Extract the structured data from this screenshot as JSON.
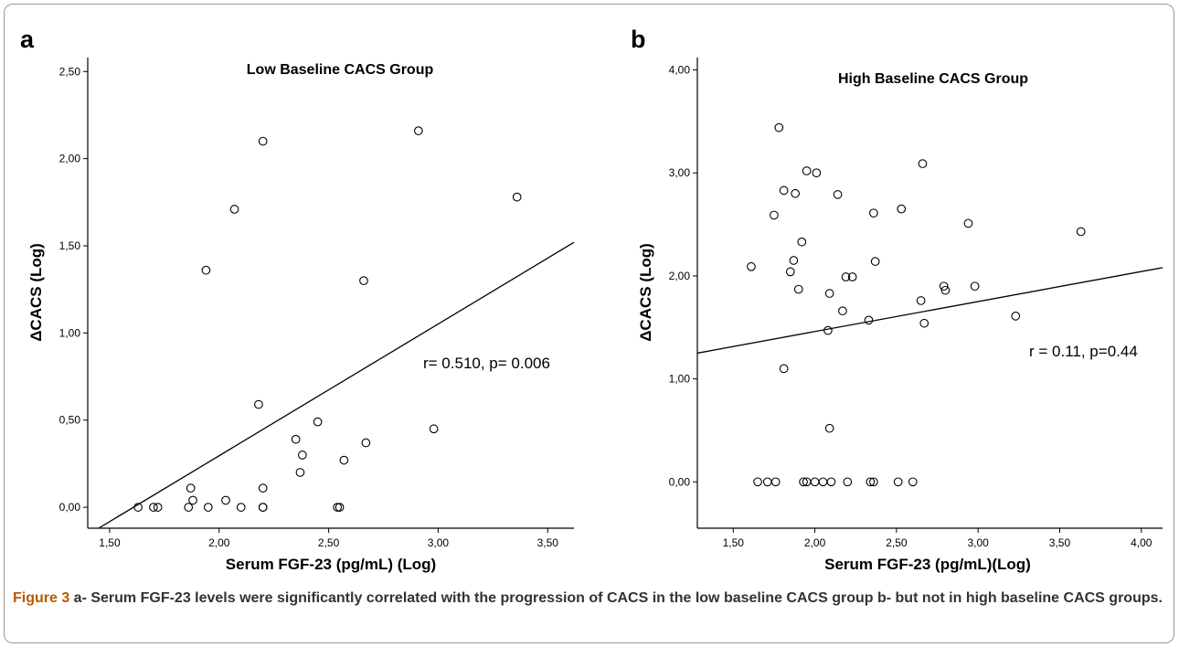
{
  "caption": {
    "label": "Figure 3",
    "text": " a- Serum FGF-23 levels were significantly correlated with the progression of CACS in the low baseline CACS group b- but not in high baseline CACS groups."
  },
  "colors": {
    "axis": "#000000",
    "marker": "#000000",
    "caption": "#333333",
    "figure_label": "#b85a00",
    "border": "#9a9a9a"
  },
  "chart_data": [
    {
      "type": "scatter",
      "panel": "a",
      "title": "Low Baseline CACS Group",
      "xlabel": "Serum FGF-23 (pg/mL) (Log)",
      "ylabel": "ΔCACS (Log)",
      "xlim": [
        1.4,
        3.62
      ],
      "ylim": [
        -0.12,
        2.58
      ],
      "xticks": [
        "1,50",
        "2,00",
        "2,50",
        "3,00",
        "3,50"
      ],
      "yticks": [
        "0,00",
        "0,50",
        "1,00",
        "1,50",
        "2,00",
        "2,50"
      ],
      "annotation": "r= 0.510, p= 0.006",
      "fit_line": {
        "x1": 1.45,
        "y1": -0.12,
        "x2": 3.62,
        "y2": 1.52
      },
      "points": {
        "x": [
          1.63,
          1.7,
          1.72,
          1.86,
          1.87,
          1.88,
          1.95,
          2.03,
          2.1,
          2.2,
          2.2,
          2.2,
          2.54,
          2.55,
          1.94,
          2.07,
          2.18,
          2.2,
          2.35,
          2.37,
          2.38,
          2.45,
          2.57,
          2.66,
          2.67,
          2.91,
          2.98,
          3.36
        ],
        "y": [
          0.0,
          0.0,
          0.0,
          0.0,
          0.11,
          0.04,
          0.0,
          0.04,
          0.0,
          0.0,
          0.0,
          0.11,
          0.0,
          0.0,
          1.36,
          1.71,
          0.59,
          2.1,
          0.39,
          0.2,
          0.3,
          0.49,
          0.27,
          1.3,
          0.37,
          2.16,
          0.45,
          1.78
        ]
      }
    },
    {
      "type": "scatter",
      "panel": "b",
      "title": "High Baseline CACS Group",
      "xlabel": "Serum FGF-23 (pg/mL)(Log)",
      "ylabel": "ΔCACS (Log)",
      "xlim": [
        1.28,
        4.13
      ],
      "ylim": [
        -0.45,
        4.12
      ],
      "xticks": [
        "1,50",
        "2,00",
        "2,50",
        "3,00",
        "3,50",
        "4,00"
      ],
      "yticks": [
        "0,00",
        "1,00",
        "2,00",
        "3,00",
        "4,00"
      ],
      "annotation": "r = 0.11, p=0.44",
      "fit_line": {
        "x1": 1.28,
        "y1": 1.25,
        "x2": 4.13,
        "y2": 2.08
      },
      "points": {
        "x": [
          1.65,
          1.71,
          1.76,
          1.93,
          1.95,
          2.0,
          2.05,
          2.1,
          2.2,
          2.34,
          2.36,
          2.51,
          2.6,
          1.61,
          1.75,
          1.78,
          1.81,
          1.81,
          1.85,
          1.87,
          1.88,
          1.9,
          1.92,
          1.95,
          2.01,
          2.08,
          2.09,
          2.09,
          2.14,
          2.17,
          2.19,
          2.23,
          2.33,
          2.36,
          2.37,
          2.53,
          2.65,
          2.66,
          2.67,
          2.79,
          2.8,
          2.94,
          2.98,
          3.23,
          3.63
        ],
        "y": [
          0.0,
          0.0,
          0.0,
          0.0,
          0.0,
          0.0,
          0.0,
          0.0,
          0.0,
          0.0,
          0.0,
          0.0,
          0.0,
          2.09,
          2.59,
          3.44,
          2.83,
          1.1,
          2.04,
          2.15,
          2.8,
          1.87,
          2.33,
          3.02,
          3.0,
          1.47,
          1.83,
          0.52,
          2.79,
          1.66,
          1.99,
          1.99,
          1.57,
          2.61,
          2.14,
          2.65,
          1.76,
          3.09,
          1.54,
          1.9,
          1.86,
          2.51,
          1.9,
          1.61,
          2.43
        ]
      }
    }
  ]
}
